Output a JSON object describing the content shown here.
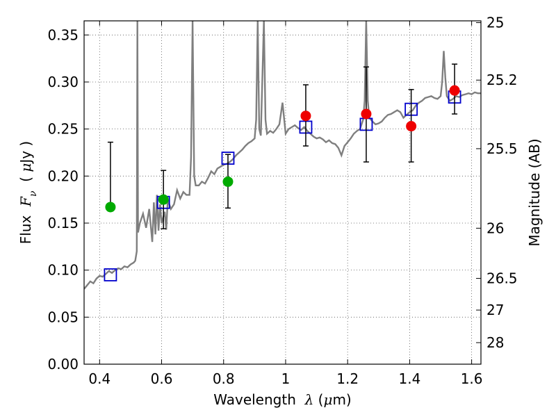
{
  "chart_data": {
    "type": "scatter",
    "xlabel_parts": [
      "Wavelength  ",
      "λ",
      " (",
      "μ",
      "m)"
    ],
    "ylabel_parts": [
      "Flux  ",
      "F",
      "ν",
      "  ( ",
      "μ",
      "Jy )"
    ],
    "y2label": "Magnitude (AB)",
    "xlim": [
      0.35,
      1.63
    ],
    "ylim": [
      0.0,
      0.365
    ],
    "xticks": [
      0.4,
      0.6,
      0.8,
      1.0,
      1.2,
      1.4,
      1.6
    ],
    "xtick_labels": [
      "0.4",
      "0.6",
      "0.8",
      "1",
      "1.2",
      "1.4",
      "1.6"
    ],
    "yticks": [
      0.0,
      0.05,
      0.1,
      0.15,
      0.2,
      0.25,
      0.3,
      0.35
    ],
    "ytick_labels": [
      "0.00",
      "0.05",
      "0.10",
      "0.15",
      "0.20",
      "0.25",
      "0.30",
      "0.35"
    ],
    "y2ticks": [
      {
        "mag": 25,
        "label": "25"
      },
      {
        "mag": 25.2,
        "label": "25.2"
      },
      {
        "mag": 25.5,
        "label": "25.5"
      },
      {
        "mag": 26,
        "label": "26"
      },
      {
        "mag": 26.5,
        "label": "26.5"
      },
      {
        "mag": 27,
        "label": "27"
      },
      {
        "mag": 28,
        "label": "28"
      }
    ],
    "grid": true,
    "colors": {
      "green": "#00aa00",
      "red": "#ee0000",
      "model_box": "#0000cc",
      "spectrum": "#7f7f7f",
      "errorbar": "#000000",
      "grid": "#555555"
    },
    "observed_points": [
      {
        "x": 0.435,
        "y": 0.167,
        "yerr_low": 0.167,
        "yerr_high": 0.236,
        "color": "green"
      },
      {
        "x": 0.606,
        "y": 0.175,
        "yerr_low": 0.144,
        "yerr_high": 0.206,
        "color": "green"
      },
      {
        "x": 0.814,
        "y": 0.194,
        "yerr_low": 0.166,
        "yerr_high": 0.223,
        "color": "green"
      },
      {
        "x": 1.065,
        "y": 0.264,
        "yerr_low": 0.232,
        "yerr_high": 0.297,
        "color": "red"
      },
      {
        "x": 1.26,
        "y": 0.266,
        "yerr_low": 0.215,
        "yerr_high": 0.316,
        "color": "red"
      },
      {
        "x": 1.405,
        "y": 0.253,
        "yerr_low": 0.215,
        "yerr_high": 0.292,
        "color": "red"
      },
      {
        "x": 1.545,
        "y": 0.291,
        "yerr_low": 0.266,
        "yerr_high": 0.319,
        "color": "red"
      }
    ],
    "model_photometry": [
      {
        "x": 0.435,
        "y": 0.095
      },
      {
        "x": 0.606,
        "y": 0.172
      },
      {
        "x": 0.814,
        "y": 0.219
      },
      {
        "x": 1.065,
        "y": 0.252
      },
      {
        "x": 1.26,
        "y": 0.255
      },
      {
        "x": 1.405,
        "y": 0.271
      },
      {
        "x": 1.545,
        "y": 0.284
      }
    ],
    "spectrum": [
      [
        0.35,
        0.08
      ],
      [
        0.36,
        0.084
      ],
      [
        0.37,
        0.088
      ],
      [
        0.38,
        0.086
      ],
      [
        0.39,
        0.091
      ],
      [
        0.4,
        0.094
      ],
      [
        0.41,
        0.093
      ],
      [
        0.42,
        0.096
      ],
      [
        0.43,
        0.099
      ],
      [
        0.44,
        0.097
      ],
      [
        0.45,
        0.1
      ],
      [
        0.46,
        0.102
      ],
      [
        0.47,
        0.101
      ],
      [
        0.48,
        0.104
      ],
      [
        0.49,
        0.103
      ],
      [
        0.5,
        0.106
      ],
      [
        0.51,
        0.108
      ],
      [
        0.515,
        0.11
      ],
      [
        0.52,
        0.12
      ],
      [
        0.522,
        0.365
      ],
      [
        0.524,
        0.14
      ],
      [
        0.53,
        0.15
      ],
      [
        0.54,
        0.16
      ],
      [
        0.55,
        0.145
      ],
      [
        0.56,
        0.165
      ],
      [
        0.57,
        0.13
      ],
      [
        0.575,
        0.172
      ],
      [
        0.58,
        0.138
      ],
      [
        0.585,
        0.18
      ],
      [
        0.59,
        0.142
      ],
      [
        0.595,
        0.17
      ],
      [
        0.6,
        0.15
      ],
      [
        0.61,
        0.162
      ],
      [
        0.615,
        0.143
      ],
      [
        0.62,
        0.175
      ],
      [
        0.63,
        0.165
      ],
      [
        0.64,
        0.17
      ],
      [
        0.65,
        0.185
      ],
      [
        0.66,
        0.176
      ],
      [
        0.67,
        0.183
      ],
      [
        0.68,
        0.18
      ],
      [
        0.69,
        0.18
      ],
      [
        0.695,
        0.22
      ],
      [
        0.7,
        0.365
      ],
      [
        0.705,
        0.2
      ],
      [
        0.71,
        0.19
      ],
      [
        0.72,
        0.19
      ],
      [
        0.73,
        0.194
      ],
      [
        0.74,
        0.192
      ],
      [
        0.75,
        0.198
      ],
      [
        0.76,
        0.205
      ],
      [
        0.77,
        0.202
      ],
      [
        0.78,
        0.208
      ],
      [
        0.79,
        0.21
      ],
      [
        0.8,
        0.212
      ],
      [
        0.81,
        0.213
      ],
      [
        0.82,
        0.215
      ],
      [
        0.83,
        0.218
      ],
      [
        0.84,
        0.222
      ],
      [
        0.85,
        0.225
      ],
      [
        0.86,
        0.228
      ],
      [
        0.87,
        0.232
      ],
      [
        0.88,
        0.235
      ],
      [
        0.89,
        0.237
      ],
      [
        0.9,
        0.24
      ],
      [
        0.905,
        0.26
      ],
      [
        0.91,
        0.365
      ],
      [
        0.915,
        0.25
      ],
      [
        0.92,
        0.243
      ],
      [
        0.93,
        0.365
      ],
      [
        0.935,
        0.26
      ],
      [
        0.94,
        0.245
      ],
      [
        0.95,
        0.248
      ],
      [
        0.96,
        0.246
      ],
      [
        0.97,
        0.25
      ],
      [
        0.98,
        0.255
      ],
      [
        0.99,
        0.278
      ],
      [
        1.0,
        0.245
      ],
      [
        1.01,
        0.25
      ],
      [
        1.02,
        0.252
      ],
      [
        1.03,
        0.254
      ],
      [
        1.04,
        0.251
      ],
      [
        1.05,
        0.249
      ],
      [
        1.06,
        0.252
      ],
      [
        1.07,
        0.248
      ],
      [
        1.08,
        0.245
      ],
      [
        1.09,
        0.242
      ],
      [
        1.1,
        0.24
      ],
      [
        1.11,
        0.241
      ],
      [
        1.12,
        0.239
      ],
      [
        1.13,
        0.236
      ],
      [
        1.14,
        0.238
      ],
      [
        1.15,
        0.235
      ],
      [
        1.16,
        0.234
      ],
      [
        1.17,
        0.23
      ],
      [
        1.18,
        0.222
      ],
      [
        1.19,
        0.232
      ],
      [
        1.2,
        0.236
      ],
      [
        1.21,
        0.24
      ],
      [
        1.22,
        0.245
      ],
      [
        1.23,
        0.248
      ],
      [
        1.24,
        0.25
      ],
      [
        1.25,
        0.26
      ],
      [
        1.255,
        0.28
      ],
      [
        1.26,
        0.365
      ],
      [
        1.265,
        0.28
      ],
      [
        1.27,
        0.262
      ],
      [
        1.28,
        0.258
      ],
      [
        1.29,
        0.255
      ],
      [
        1.3,
        0.256
      ],
      [
        1.31,
        0.258
      ],
      [
        1.32,
        0.262
      ],
      [
        1.33,
        0.265
      ],
      [
        1.34,
        0.266
      ],
      [
        1.35,
        0.268
      ],
      [
        1.36,
        0.27
      ],
      [
        1.37,
        0.268
      ],
      [
        1.38,
        0.262
      ],
      [
        1.39,
        0.265
      ],
      [
        1.4,
        0.268
      ],
      [
        1.41,
        0.27
      ],
      [
        1.42,
        0.275
      ],
      [
        1.43,
        0.278
      ],
      [
        1.44,
        0.28
      ],
      [
        1.45,
        0.283
      ],
      [
        1.46,
        0.284
      ],
      [
        1.47,
        0.285
      ],
      [
        1.48,
        0.283
      ],
      [
        1.49,
        0.282
      ],
      [
        1.5,
        0.285
      ],
      [
        1.505,
        0.3
      ],
      [
        1.51,
        0.333
      ],
      [
        1.515,
        0.305
      ],
      [
        1.52,
        0.285
      ],
      [
        1.53,
        0.28
      ],
      [
        1.54,
        0.282
      ],
      [
        1.55,
        0.285
      ],
      [
        1.56,
        0.284
      ],
      [
        1.57,
        0.286
      ],
      [
        1.58,
        0.287
      ],
      [
        1.59,
        0.288
      ],
      [
        1.6,
        0.287
      ],
      [
        1.61,
        0.289
      ],
      [
        1.62,
        0.288
      ],
      [
        1.63,
        0.288
      ]
    ]
  }
}
